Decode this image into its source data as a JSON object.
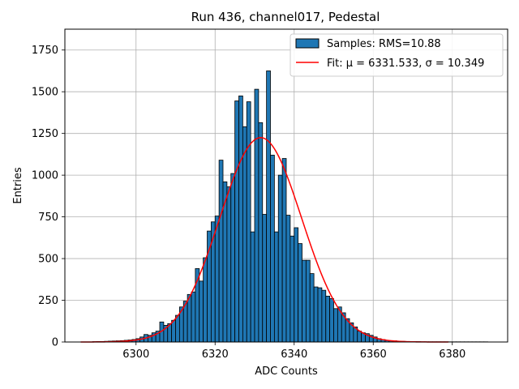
{
  "chart_data": {
    "type": "bar",
    "title": "Run 436, channel017, Pedestal",
    "xlabel": "ADC Counts",
    "ylabel": "Entries",
    "xlim": [
      6282,
      6394
    ],
    "ylim": [
      0,
      1875
    ],
    "xticks": [
      6300,
      6320,
      6340,
      6360,
      6380
    ],
    "yticks": [
      0,
      250,
      500,
      750,
      1000,
      1250,
      1500,
      1750
    ],
    "grid": true,
    "legend_position": "top-right",
    "histogram": {
      "name": "Samples: RMS=10.88",
      "color": "#1f77b4",
      "bin_width": 1,
      "bin_starts": [
        6289,
        6290,
        6291,
        6292,
        6293,
        6294,
        6295,
        6296,
        6297,
        6298,
        6299,
        6300,
        6301,
        6302,
        6303,
        6304,
        6305,
        6306,
        6307,
        6308,
        6309,
        6310,
        6311,
        6312,
        6313,
        6314,
        6315,
        6316,
        6317,
        6318,
        6319,
        6320,
        6321,
        6322,
        6323,
        6324,
        6325,
        6326,
        6327,
        6328,
        6329,
        6330,
        6331,
        6332,
        6333,
        6334,
        6335,
        6336,
        6337,
        6338,
        6339,
        6340,
        6341,
        6342,
        6343,
        6344,
        6345,
        6346,
        6347,
        6348,
        6349,
        6350,
        6351,
        6352,
        6353,
        6354,
        6355,
        6356,
        6357,
        6358,
        6359,
        6360,
        6361,
        6362,
        6363,
        6364,
        6365,
        6366,
        6367,
        6368,
        6369,
        6370,
        6371,
        6372,
        6373,
        6374,
        6375,
        6376,
        6377,
        6378,
        6379,
        6380,
        6381,
        6382,
        6383,
        6384,
        6385,
        6386,
        6387,
        6388
      ],
      "counts": [
        2,
        3,
        3,
        4,
        5,
        6,
        7,
        8,
        10,
        12,
        15,
        20,
        30,
        45,
        40,
        55,
        65,
        120,
        100,
        110,
        130,
        160,
        210,
        245,
        285,
        300,
        440,
        365,
        505,
        665,
        720,
        755,
        1090,
        960,
        930,
        1010,
        1445,
        1475,
        1290,
        1440,
        660,
        1515,
        1315,
        765,
        1625,
        1120,
        660,
        1000,
        1100,
        760,
        635,
        685,
        590,
        490,
        490,
        410,
        330,
        325,
        310,
        275,
        260,
        200,
        210,
        175,
        140,
        115,
        90,
        65,
        55,
        50,
        40,
        30,
        20,
        15,
        10,
        8,
        7,
        5,
        4,
        3,
        2,
        2,
        2,
        1,
        1,
        1,
        1,
        1,
        1,
        1,
        1,
        1,
        1,
        1,
        1,
        1,
        1,
        1,
        1,
        1
      ]
    },
    "fit": {
      "name": "Fit: μ = 6331.533, σ = 10.349",
      "color": "#ff0000",
      "mu": 6331.533,
      "sigma": 10.349,
      "amplitude": 1225,
      "x_range": [
        6286,
        6379
      ]
    }
  }
}
